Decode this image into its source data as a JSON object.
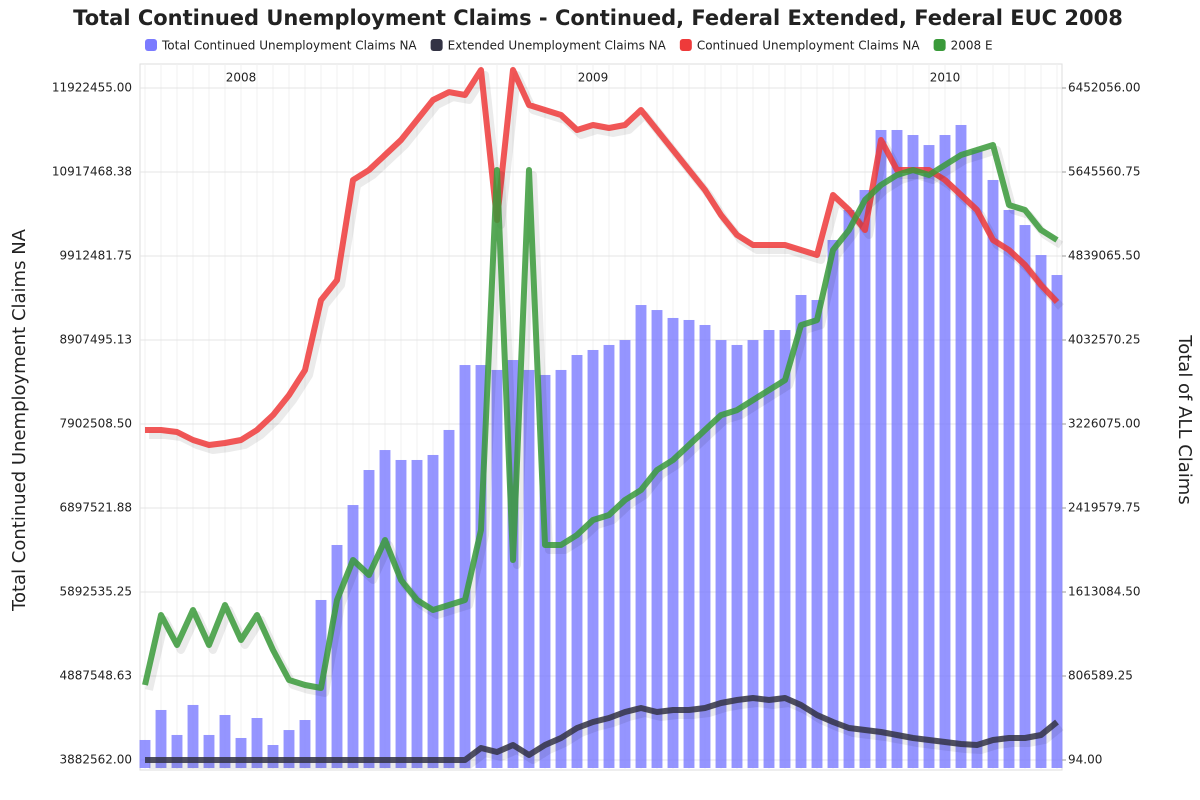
{
  "chart_data": {
    "type": "bar",
    "title": "Total Continued Unemployment Claims - Continued, Federal Extended, Federal EUC 2008",
    "y_label": "Total Continued Unemployment Claims NA",
    "y2_label": "Total of ALL Claims",
    "categories": [
      null,
      null,
      null,
      null,
      null,
      null,
      "2008",
      null,
      null,
      null,
      null,
      null,
      null,
      null,
      null,
      null,
      null,
      null,
      null,
      null,
      null,
      null,
      null,
      null,
      null,
      null,
      null,
      null,
      "2009",
      null,
      null,
      null,
      null,
      null,
      null,
      null,
      null,
      null,
      null,
      null,
      null,
      null,
      null,
      null,
      null,
      null,
      null,
      null,
      null,
      null,
      "2010",
      null,
      null,
      null,
      null,
      null,
      null,
      null
    ],
    "ylim": [
      3882562,
      11922455
    ],
    "yticks": [
      {
        "value": 3882562,
        "label": "3882562.00"
      },
      {
        "value": 4887548.63,
        "label": "4887548.63"
      },
      {
        "value": 5892535.25,
        "label": "5892535.25"
      },
      {
        "value": 6897521.88,
        "label": "6897521.88"
      },
      {
        "value": 7902508.5,
        "label": "7902508.50"
      },
      {
        "value": 8907495.13,
        "label": "8907495.13"
      },
      {
        "value": 9912481.75,
        "label": "9912481.75"
      },
      {
        "value": 10917468.38,
        "label": "10917468.38"
      },
      {
        "value": 11922455,
        "label": "11922455.00"
      }
    ],
    "y2lim": [
      94,
      6452056
    ],
    "y2ticks": [
      {
        "value": 94,
        "label": "94.00"
      },
      {
        "value": 806589.25,
        "label": "806589.25"
      },
      {
        "value": 1613084.5,
        "label": "1613084.50"
      },
      {
        "value": 2419579.75,
        "label": "2419579.75"
      },
      {
        "value": 3226075,
        "label": "3226075.00"
      },
      {
        "value": 4032570.25,
        "label": "4032570.25"
      },
      {
        "value": 4839065.5,
        "label": "4839065.50"
      },
      {
        "value": 5645560.75,
        "label": "5645560.75"
      },
      {
        "value": 6452056,
        "label": "6452056.00"
      }
    ],
    "grid": true,
    "series": [
      {
        "name": "Total Continued Unemployment Claims NA",
        "color": "#7b7bff",
        "type": "bar",
        "axis": "y",
        "values": [
          4122000,
          4481000,
          4182000,
          4541000,
          4182000,
          4421000,
          4146000,
          4385000,
          4062000,
          4241000,
          4361000,
          5797000,
          6455000,
          6933000,
          7352000,
          7591000,
          7472000,
          7472000,
          7532000,
          7831000,
          8608000,
          8608000,
          8549000,
          8668000,
          8549000,
          8489000,
          8549000,
          8728000,
          8788000,
          8848000,
          8907000,
          9326000,
          9266000,
          9171000,
          9147000,
          9087000,
          8907000,
          8848000,
          8907000,
          9027000,
          9027000,
          9446000,
          9386000,
          10104000,
          10463000,
          10702000,
          11420000,
          11420000,
          11360000,
          11240000,
          11360000,
          11480000,
          11181000,
          10822000,
          10463000,
          10283000,
          9924000,
          9685000
        ]
      },
      {
        "name": "Extended Unemployment Claims NA",
        "color": "#333344",
        "type": "line",
        "axis": "y2",
        "values": [
          94,
          94,
          94,
          94,
          94,
          94,
          94,
          94,
          94,
          94,
          94,
          94,
          94,
          94,
          94,
          94,
          94,
          94,
          94,
          94,
          94,
          115000,
          77000,
          144000,
          48000,
          144000,
          211000,
          307000,
          365000,
          403000,
          461000,
          499000,
          461000,
          480000,
          480000,
          499000,
          547000,
          576000,
          595000,
          576000,
          595000,
          528000,
          432000,
          365000,
          307000,
          288000,
          269000,
          240000,
          211000,
          192000,
          173000,
          154000,
          144000,
          192000,
          211000,
          211000,
          240000,
          365000
        ]
      },
      {
        "name": "Continued Unemployment Claims NA",
        "color": "#ee3a3a",
        "type": "line",
        "axis": "y2",
        "values": [
          3168000,
          3168000,
          3149000,
          3072000,
          3024000,
          3044000,
          3072000,
          3168000,
          3312000,
          3504000,
          3744000,
          4416000,
          4608000,
          5569000,
          5665000,
          5809000,
          5953000,
          6145000,
          6337000,
          6413000,
          6385000,
          6625000,
          5185000,
          6625000,
          6289000,
          6241000,
          6193000,
          6049000,
          6097000,
          6068000,
          6097000,
          6241000,
          6049000,
          5857000,
          5665000,
          5473000,
          5233000,
          5041000,
          4945000,
          4945000,
          4945000,
          4897000,
          4849000,
          5425000,
          5281000,
          5089000,
          5953000,
          5665000,
          5665000,
          5665000,
          5569000,
          5425000,
          5281000,
          4993000,
          4897000,
          4753000,
          4561000,
          4397000
        ]
      },
      {
        "name": "2008 E",
        "color": "#3a9a3a",
        "type": "line",
        "axis": "y2",
        "values": [
          720000,
          1392000,
          1104000,
          1440000,
          1104000,
          1488000,
          1152000,
          1392000,
          1056000,
          768000,
          720000,
          691000,
          1536000,
          1920000,
          1776000,
          2112000,
          1728000,
          1536000,
          1440000,
          1488000,
          1536000,
          2208000,
          5665000,
          1920000,
          5665000,
          2064000,
          2064000,
          2160000,
          2304000,
          2352000,
          2496000,
          2592000,
          2784000,
          2880000,
          3024000,
          3168000,
          3312000,
          3360000,
          3456000,
          3552000,
          3648000,
          4176000,
          4224000,
          4897000,
          5089000,
          5377000,
          5521000,
          5617000,
          5665000,
          5617000,
          5713000,
          5809000,
          5857000,
          5905000,
          5329000,
          5281000,
          5089000,
          4993000
        ]
      }
    ]
  }
}
